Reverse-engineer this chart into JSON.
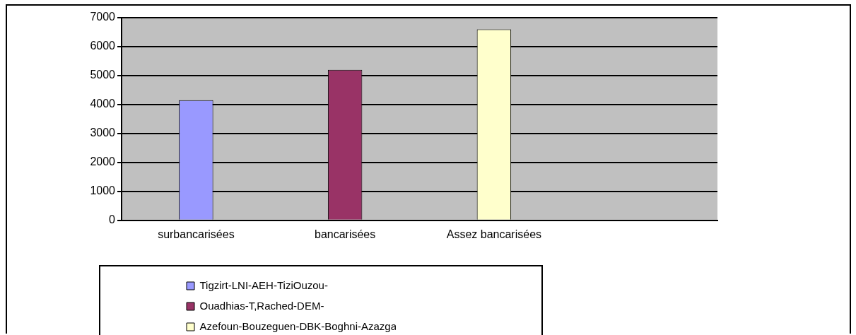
{
  "chart_data": {
    "type": "bar",
    "categories": [
      "surbancarisées",
      "bancarisées",
      "Assez bancarisées",
      null
    ],
    "series": [
      {
        "name": "Tigzirt-LNI-AEH-TiziOuzou-",
        "color": "#9999ff",
        "values": [
          4150,
          null,
          null,
          null
        ]
      },
      {
        "name": "Ouadhias-T,Rached-DEM-",
        "color": "#993366",
        "values": [
          null,
          5200,
          null,
          null
        ]
      },
      {
        "name": "Azefoun-Bouzeguen-DBK-Boghni-Azazga",
        "color": "#ffffcc",
        "values": [
          null,
          null,
          6600,
          null
        ]
      }
    ],
    "ylim": [
      0,
      7000
    ],
    "yticks": [
      0,
      1000,
      2000,
      3000,
      4000,
      5000,
      6000,
      7000
    ],
    "grid": "y",
    "legend": "bottom"
  }
}
